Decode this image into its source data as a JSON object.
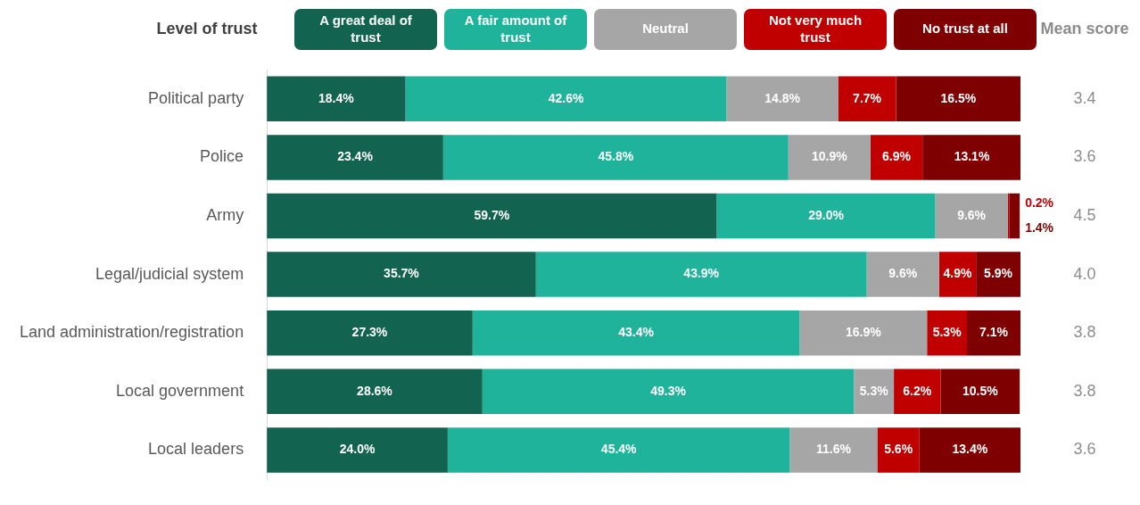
{
  "chart_data": {
    "type": "bar",
    "orientation": "horizontal",
    "stacked": true,
    "legend": "top",
    "legend_title": "Level of trust",
    "tick_labels": "y",
    "data_labels": true,
    "xlim": [
      0,
      100
    ],
    "categories": [
      "Political party",
      "Police",
      "Army",
      "Legal/judicial system",
      "Land administration/registration",
      "Local government",
      "Local leaders"
    ],
    "series": [
      {
        "name": "A great deal of trust",
        "color": "#12634f",
        "values": [
          18.4,
          23.4,
          59.7,
          35.7,
          27.3,
          28.6,
          24.0
        ],
        "value_labels": [
          "18.4%",
          "23.4%",
          "59.7%",
          "35.7%",
          "27.3%",
          "28.6%",
          "24.0%"
        ]
      },
      {
        "name": "A fair amount of trust",
        "color": "#20b39b",
        "values": [
          42.6,
          45.8,
          29.0,
          43.9,
          43.4,
          49.3,
          45.4
        ],
        "value_labels": [
          "42.6%",
          "45.8%",
          "29.0%",
          "43.9%",
          "43.4%",
          "49.3%",
          "45.4%"
        ]
      },
      {
        "name": "Neutral",
        "color": "#a6a6a6",
        "values": [
          14.8,
          10.9,
          9.6,
          9.6,
          16.9,
          5.3,
          11.6
        ],
        "value_labels": [
          "14.8%",
          "10.9%",
          "9.6%",
          "9.6%",
          "16.9%",
          "5.3%",
          "11.6%"
        ]
      },
      {
        "name": "Not very much trust",
        "color": "#c00000",
        "values": [
          7.7,
          6.9,
          0.2,
          4.9,
          5.3,
          6.2,
          5.6
        ],
        "value_labels": [
          "7.7%",
          "6.9%",
          "0.2%",
          "4.9%",
          "5.3%",
          "6.2%",
          "5.6%"
        ]
      },
      {
        "name": "No trust at all",
        "color": "#7f0000",
        "values": [
          16.5,
          13.1,
          1.4,
          5.9,
          7.1,
          10.5,
          13.4
        ],
        "value_labels": [
          "16.5%",
          "13.1%",
          "1.4%",
          "5.9%",
          "7.1%",
          "10.5%",
          "13.4%"
        ]
      }
    ],
    "annotations": [
      "Mean score",
      "3.4",
      "3.6",
      "4.5",
      "4.0",
      "3.8",
      "3.8",
      "3.6"
    ]
  }
}
